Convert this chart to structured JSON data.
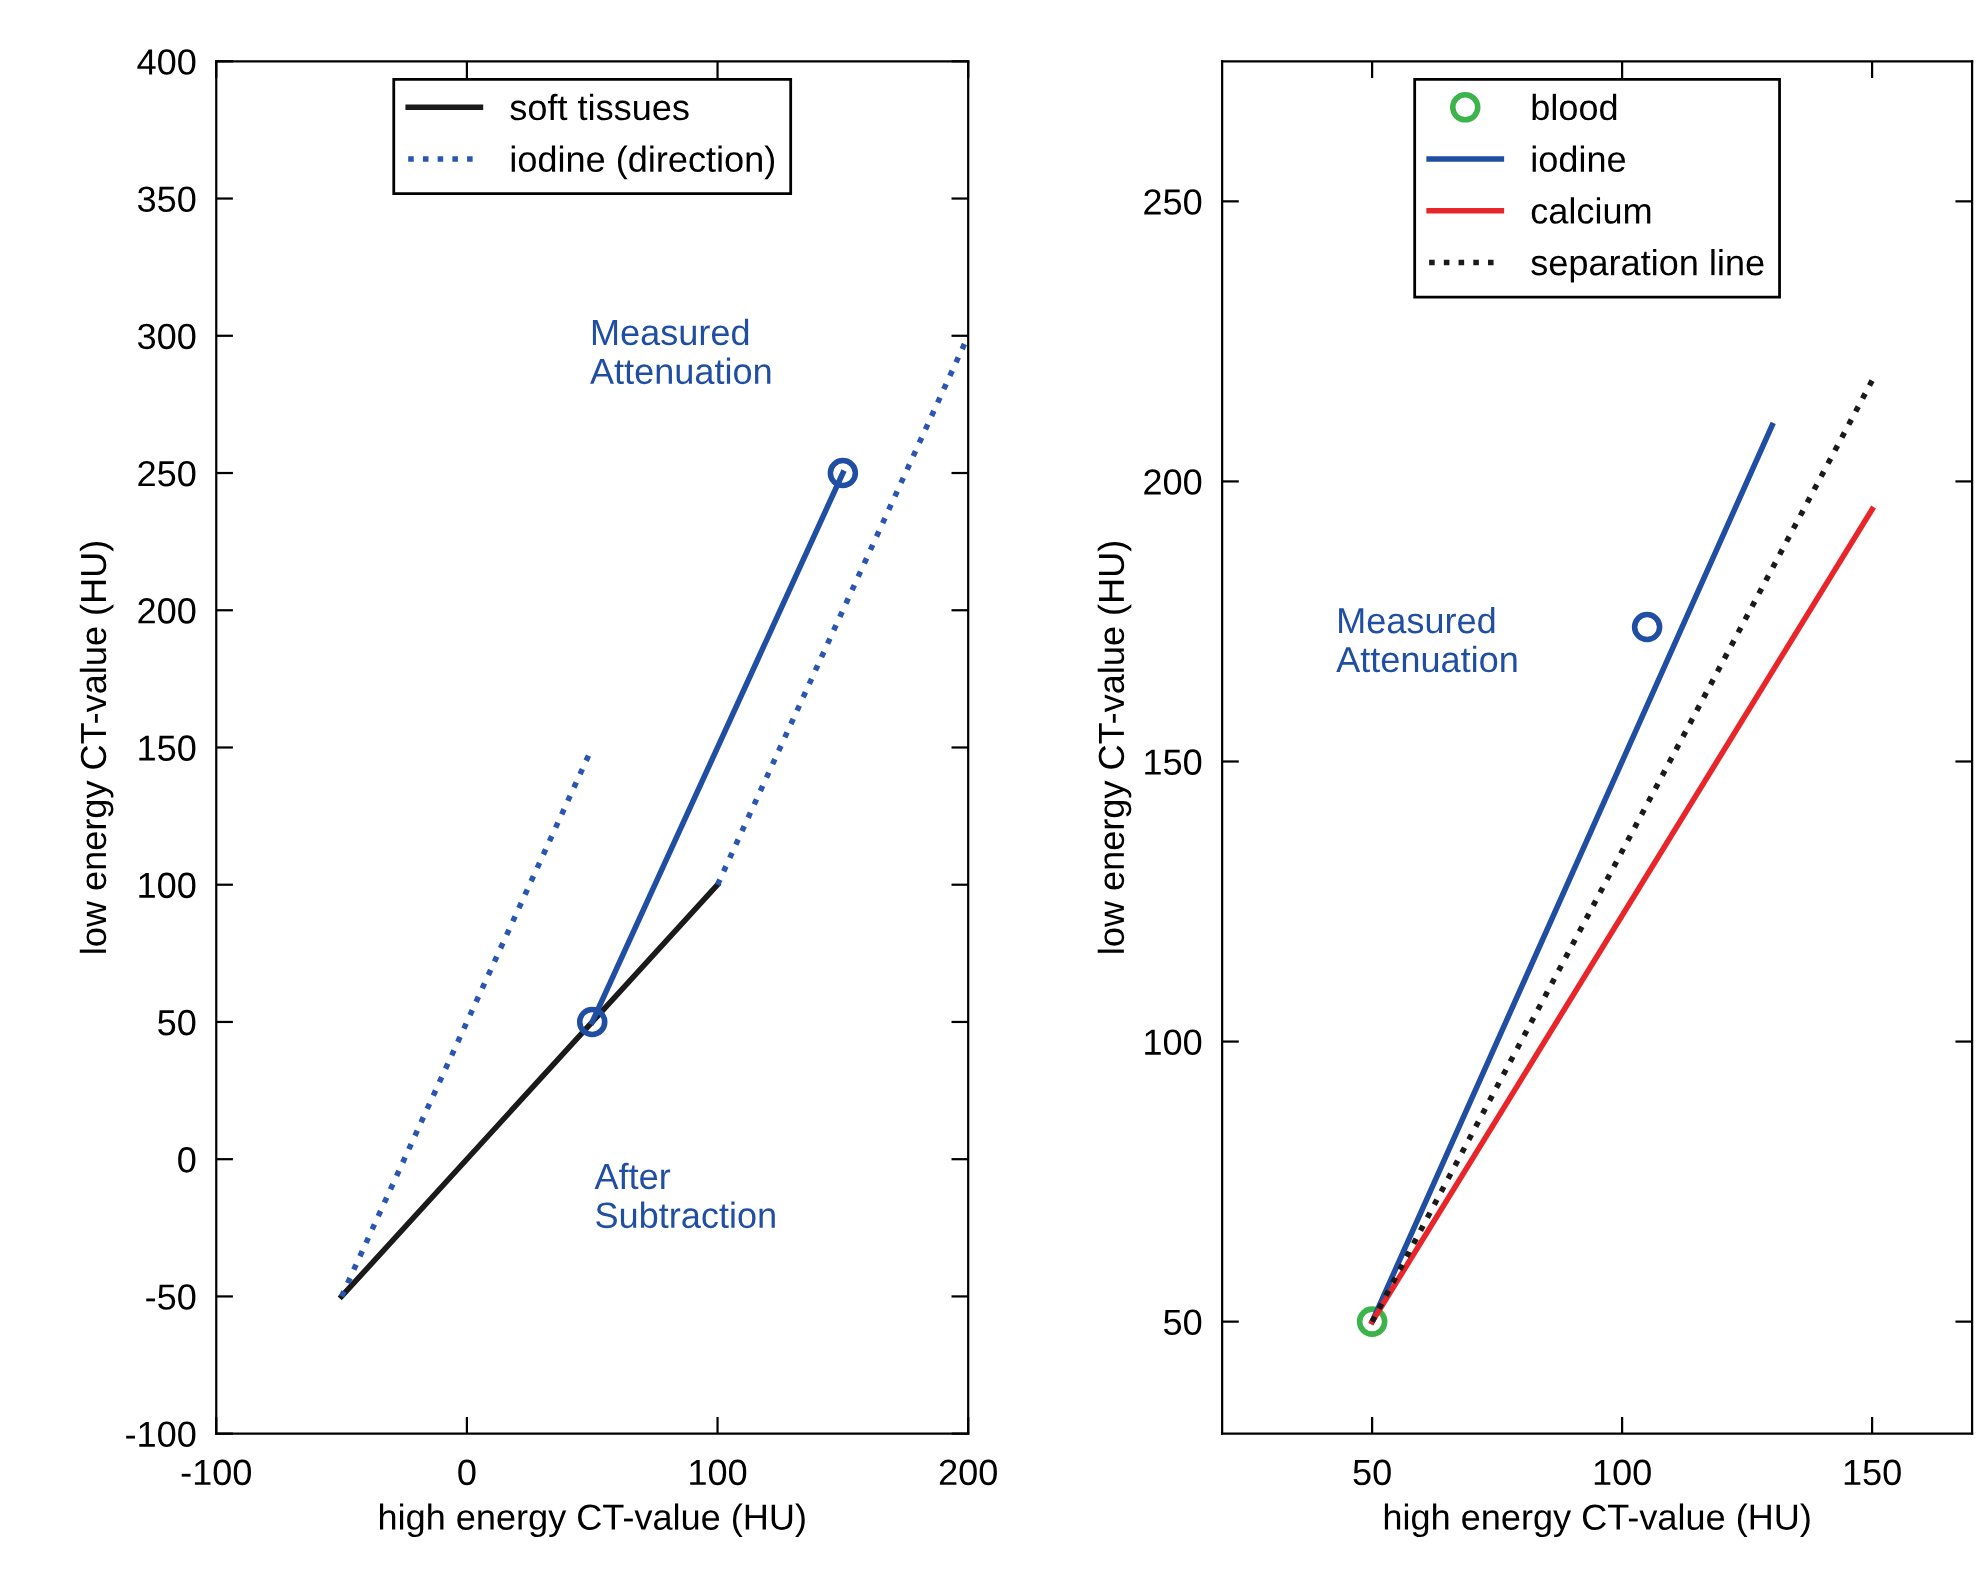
{
  "chart_data": [
    {
      "type": "line",
      "xlabel": "high energy CT-value (HU)",
      "ylabel": "low energy CT-value (HU)",
      "xlim": [
        -100,
        200
      ],
      "xticks": [
        -100,
        0,
        100,
        200
      ],
      "ylim": [
        -100,
        400
      ],
      "yticks": [
        -100,
        -50,
        0,
        50,
        100,
        150,
        200,
        250,
        300,
        350,
        400
      ],
      "grid": false,
      "legend": "top",
      "series": [
        {
          "name": "soft tissues",
          "color": "#1a1a1a",
          "x": [
            -50,
            100
          ],
          "values": [
            -50,
            100
          ],
          "line_style": "solid",
          "marker": "none"
        },
        {
          "name": "iodine (direction)",
          "color": "#2a55b0",
          "x": [
            -50,
            50
          ],
          "values": [
            -50,
            150
          ],
          "line_style": "dotted",
          "marker": "none"
        },
        {
          "color": "#2a55b0",
          "x": [
            100,
            200
          ],
          "values": [
            100,
            300
          ],
          "line_style": "dotted",
          "marker": "none"
        },
        {
          "color": "#1f4ea3",
          "x": [
            50,
            150
          ],
          "values": [
            50,
            250
          ],
          "line_style": "solid",
          "marker": "circle"
        }
      ],
      "annotations": [
        "Measured\nAttenuation",
        "After\nSubtraction"
      ]
    },
    {
      "type": "line",
      "xlabel": "high energy CT-value (HU)",
      "ylabel": "low energy CT-value (HU)",
      "xlim": [
        20,
        170
      ],
      "xticks": [
        50,
        100,
        150
      ],
      "ylim": [
        30,
        275
      ],
      "yticks": [
        50,
        100,
        150,
        200,
        250
      ],
      "grid": false,
      "legend": "top",
      "series": [
        {
          "name": "blood",
          "type": "scatter",
          "color": "#3cb44b",
          "x": [
            50
          ],
          "values": [
            50
          ],
          "marker": "circle"
        },
        {
          "name": "iodine",
          "color": "#1f4ea3",
          "x": [
            50,
            130
          ],
          "values": [
            50,
            210
          ],
          "line_style": "solid",
          "marker": "none"
        },
        {
          "name": "calcium",
          "color": "#e8262a",
          "x": [
            50,
            150
          ],
          "values": [
            50,
            195
          ],
          "line_style": "solid",
          "marker": "none"
        },
        {
          "name": "separation line",
          "color": "#1a1a1a",
          "x": [
            50,
            150
          ],
          "values": [
            50,
            218
          ],
          "line_style": "dotted",
          "marker": "none"
        },
        {
          "type": "scatter",
          "color": "#1f4ea3",
          "x": [
            105
          ],
          "values": [
            174
          ],
          "marker": "circle"
        }
      ],
      "annotations": [
        "Measured\nAttenuation"
      ]
    }
  ]
}
